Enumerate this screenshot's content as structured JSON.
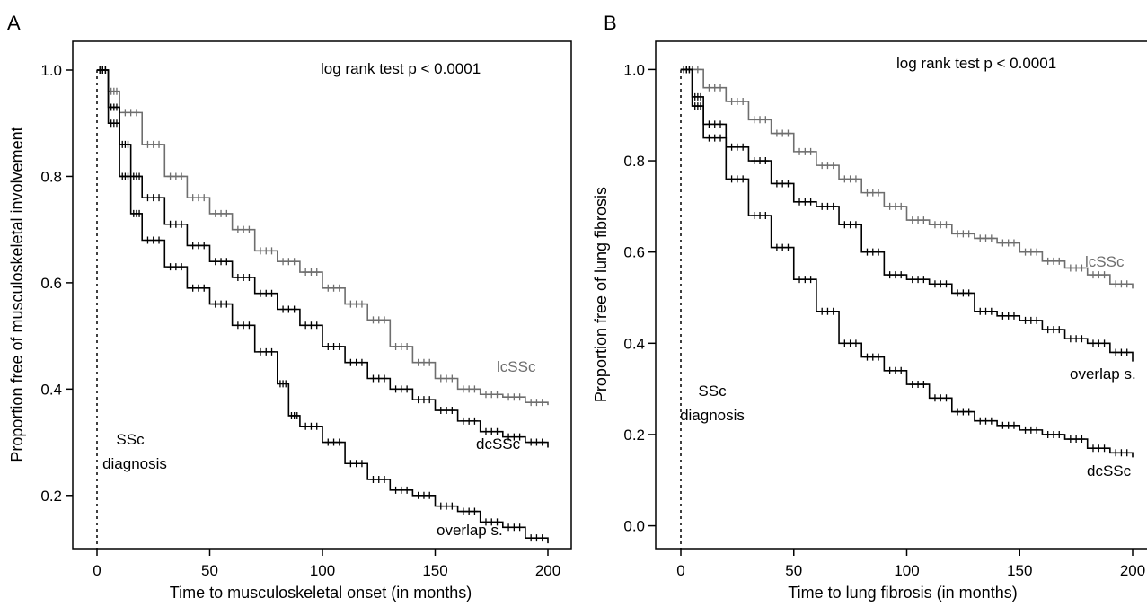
{
  "chart_data": [
    {
      "panel_label": "A",
      "type": "line",
      "subtype": "kaplan-meier",
      "xlabel": "Time to musculoskeletal onset (in months)",
      "ylabel": "Proportion free of musculoskeletal involvement",
      "xlim": [
        0,
        200
      ],
      "ylim": [
        0.1,
        1.0
      ],
      "xticks": [
        "0",
        "50",
        "100",
        "150",
        "200"
      ],
      "yticks": [
        "0.2",
        "0.4",
        "0.6",
        "0.8",
        "1.0"
      ],
      "annotation": "log rank test p < 0.0001",
      "marker_label": "SSc\ndiagnosis",
      "marker_x": 0,
      "series": [
        {
          "name": "lcSSc",
          "color": "#6e6e6e",
          "x": [
            0,
            5,
            10,
            20,
            30,
            40,
            50,
            60,
            70,
            80,
            90,
            100,
            110,
            120,
            130,
            140,
            150,
            160,
            170,
            180,
            190,
            200
          ],
          "y": [
            1.0,
            0.96,
            0.92,
            0.86,
            0.8,
            0.76,
            0.73,
            0.7,
            0.66,
            0.64,
            0.62,
            0.59,
            0.56,
            0.53,
            0.48,
            0.45,
            0.42,
            0.4,
            0.39,
            0.385,
            0.375,
            0.37
          ]
        },
        {
          "name": "dcSSc",
          "color": "#000000",
          "x": [
            0,
            5,
            10,
            15,
            20,
            30,
            40,
            50,
            60,
            70,
            80,
            90,
            100,
            110,
            120,
            130,
            140,
            150,
            160,
            170,
            180,
            190,
            200
          ],
          "y": [
            1.0,
            0.93,
            0.86,
            0.8,
            0.76,
            0.71,
            0.67,
            0.64,
            0.61,
            0.58,
            0.55,
            0.52,
            0.48,
            0.45,
            0.42,
            0.4,
            0.38,
            0.36,
            0.34,
            0.32,
            0.31,
            0.3,
            0.29
          ]
        },
        {
          "name": "overlap s.",
          "color": "#000000",
          "x": [
            0,
            5,
            10,
            15,
            20,
            30,
            40,
            50,
            60,
            70,
            80,
            85,
            90,
            100,
            110,
            120,
            130,
            140,
            150,
            160,
            170,
            180,
            190,
            200
          ],
          "y": [
            1.0,
            0.9,
            0.8,
            0.73,
            0.68,
            0.63,
            0.59,
            0.56,
            0.52,
            0.47,
            0.41,
            0.35,
            0.33,
            0.3,
            0.26,
            0.23,
            0.21,
            0.2,
            0.18,
            0.17,
            0.15,
            0.14,
            0.12,
            0.11
          ]
        }
      ]
    },
    {
      "panel_label": "B",
      "type": "line",
      "subtype": "kaplan-meier",
      "xlabel": "Time to lung fibrosis (in months)",
      "ylabel": "Proportion free of lung fibrosis",
      "xlim": [
        0,
        200
      ],
      "ylim": [
        -0.05,
        1.05
      ],
      "xticks": [
        "0",
        "50",
        "100",
        "150",
        "200"
      ],
      "yticks": [
        "0.0",
        "0.2",
        "0.4",
        "0.6",
        "0.8",
        "1.0"
      ],
      "annotation": "log rank test p < 0.0001",
      "marker_label": "SSc\ndiagnosis",
      "marker_x": 0,
      "series": [
        {
          "name": "lcSSc",
          "color": "#6e6e6e",
          "x": [
            0,
            10,
            20,
            30,
            40,
            50,
            60,
            70,
            80,
            90,
            100,
            110,
            120,
            130,
            140,
            150,
            160,
            170,
            180,
            190,
            200
          ],
          "y": [
            1.0,
            0.96,
            0.93,
            0.89,
            0.86,
            0.82,
            0.79,
            0.76,
            0.73,
            0.7,
            0.67,
            0.66,
            0.64,
            0.63,
            0.62,
            0.6,
            0.58,
            0.565,
            0.55,
            0.53,
            0.52
          ]
        },
        {
          "name": "overlap s.",
          "color": "#000000",
          "x": [
            0,
            5,
            10,
            20,
            30,
            40,
            50,
            60,
            70,
            80,
            90,
            100,
            110,
            120,
            130,
            140,
            150,
            160,
            170,
            180,
            190,
            200
          ],
          "y": [
            1.0,
            0.94,
            0.88,
            0.83,
            0.8,
            0.75,
            0.71,
            0.7,
            0.66,
            0.6,
            0.55,
            0.54,
            0.53,
            0.51,
            0.47,
            0.46,
            0.45,
            0.43,
            0.41,
            0.4,
            0.38,
            0.36
          ]
        },
        {
          "name": "dcSSc",
          "color": "#000000",
          "x": [
            0,
            5,
            10,
            20,
            30,
            40,
            50,
            60,
            70,
            80,
            90,
            100,
            110,
            120,
            130,
            140,
            150,
            160,
            170,
            180,
            190,
            200
          ],
          "y": [
            1.0,
            0.92,
            0.85,
            0.76,
            0.68,
            0.61,
            0.54,
            0.47,
            0.4,
            0.37,
            0.34,
            0.31,
            0.28,
            0.25,
            0.23,
            0.22,
            0.21,
            0.2,
            0.19,
            0.17,
            0.16,
            0.15
          ]
        }
      ]
    }
  ]
}
